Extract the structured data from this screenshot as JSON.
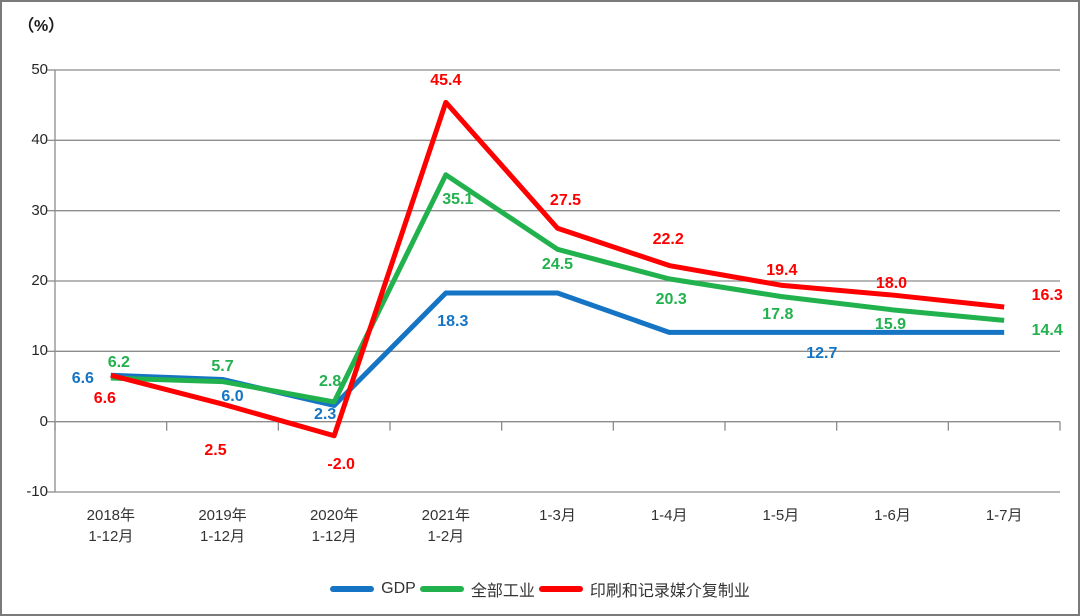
{
  "chart_data": {
    "type": "line",
    "title": "",
    "unit_label": "（%）",
    "xlabel": "",
    "ylabel": "（%）",
    "ylim": [
      -10,
      50
    ],
    "y_ticks": [
      50,
      40,
      30,
      20,
      10,
      0,
      -10
    ],
    "grid": true,
    "legend_position": "bottom",
    "categories": [
      "2018年\n1-12月",
      "2019年\n1-12月",
      "2020年\n1-12月",
      "2021年\n1-2月",
      "1-3月",
      "1-4月",
      "1-5月",
      "1-6月",
      "1-7月"
    ],
    "series": [
      {
        "name": "GDP",
        "color": "#1574C4",
        "values": [
          6.6,
          6.0,
          2.3,
          18.3,
          18.3,
          12.7,
          12.7,
          12.7,
          12.7
        ],
        "labels": [
          {
            "i": 0,
            "text": "6.6",
            "dx": -28,
            "dy": 4
          },
          {
            "i": 1,
            "text": "6.0",
            "dx": 10,
            "dy": 18
          },
          {
            "i": 2,
            "text": "2.3",
            "dx": -9,
            "dy": 10
          },
          {
            "i": 3,
            "text": "18.3",
            "dx": 7,
            "dy": 29
          },
          {
            "i": 6,
            "text": "12.7",
            "dx": 41,
            "dy": 22
          }
        ]
      },
      {
        "name": "全部工业",
        "color": "#21B14D",
        "values": [
          6.2,
          5.7,
          2.8,
          35.1,
          24.5,
          20.3,
          17.8,
          15.9,
          14.4
        ],
        "labels": [
          {
            "i": 0,
            "text": "6.2",
            "dx": 8,
            "dy": -15
          },
          {
            "i": 1,
            "text": "5.7",
            "dx": 0,
            "dy": -15
          },
          {
            "i": 2,
            "text": "2.8",
            "dx": -4,
            "dy": -20
          },
          {
            "i": 3,
            "text": "35.1",
            "dx": 12,
            "dy": 25
          },
          {
            "i": 4,
            "text": "24.5",
            "dx": 0,
            "dy": 16
          },
          {
            "i": 5,
            "text": "20.3",
            "dx": 2,
            "dy": 21
          },
          {
            "i": 6,
            "text": "17.8",
            "dx": -3,
            "dy": 19
          },
          {
            "i": 7,
            "text": "15.9",
            "dx": -2,
            "dy": 15
          },
          {
            "i": 8,
            "text": "14.4",
            "dx": 43,
            "dy": 11
          }
        ]
      },
      {
        "name": "印刷和记录媒介复制业",
        "color": "#FF0000",
        "values": [
          6.6,
          2.5,
          -2.0,
          45.4,
          27.5,
          22.2,
          19.4,
          18.0,
          16.3
        ],
        "labels": [
          {
            "i": 0,
            "text": "6.6",
            "dx": -6,
            "dy": 24
          },
          {
            "i": 1,
            "text": "2.5",
            "dx": -7,
            "dy": 47
          },
          {
            "i": 2,
            "text": "-2.0",
            "dx": 7,
            "dy": 29
          },
          {
            "i": 3,
            "text": "45.4",
            "dx": 0,
            "dy": -21
          },
          {
            "i": 4,
            "text": "27.5",
            "dx": 8,
            "dy": -27
          },
          {
            "i": 5,
            "text": "22.2",
            "dx": -1,
            "dy": -26
          },
          {
            "i": 6,
            "text": "19.4",
            "dx": 1,
            "dy": -14
          },
          {
            "i": 7,
            "text": "18.0",
            "dx": -1,
            "dy": -11
          },
          {
            "i": 8,
            "text": "16.3",
            "dx": 43,
            "dy": -11
          }
        ]
      }
    ]
  },
  "colors": {
    "grid": "#8c8c8c",
    "axis_text": "#262626",
    "background": "#ffffff",
    "frame_border": "#7a7a7a"
  }
}
